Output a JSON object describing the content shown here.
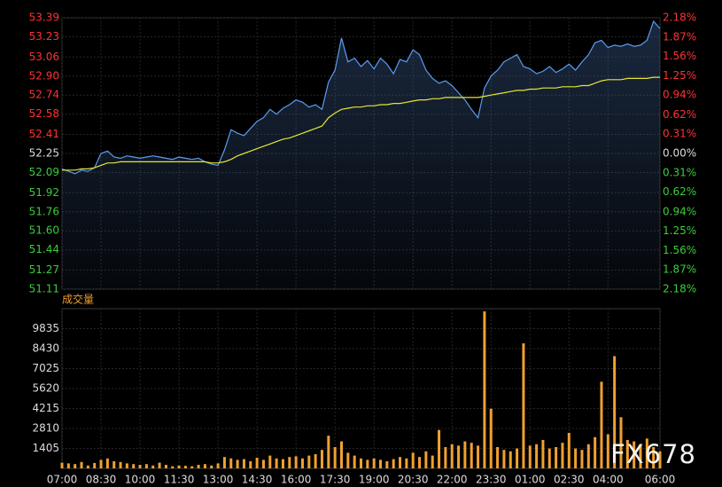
{
  "chart_data": [
    {
      "type": "line",
      "categories": [
        "07:00",
        "07:15",
        "07:30",
        "07:45",
        "08:00",
        "08:15",
        "08:30",
        "08:45",
        "09:00",
        "09:15",
        "09:30",
        "09:45",
        "10:00",
        "10:15",
        "10:30",
        "10:45",
        "11:00",
        "11:15",
        "11:30",
        "11:45",
        "12:00",
        "12:15",
        "12:30",
        "12:45",
        "13:00",
        "13:15",
        "13:30",
        "13:45",
        "14:00",
        "14:15",
        "14:30",
        "14:45",
        "15:00",
        "15:15",
        "15:30",
        "15:45",
        "16:00",
        "16:15",
        "16:30",
        "16:45",
        "17:00",
        "17:15",
        "17:30",
        "17:45",
        "18:00",
        "18:15",
        "18:30",
        "18:45",
        "19:00",
        "19:15",
        "19:30",
        "19:45",
        "20:00",
        "20:15",
        "20:30",
        "20:45",
        "21:00",
        "21:15",
        "21:30",
        "21:45",
        "22:00",
        "22:15",
        "22:30",
        "22:45",
        "23:00",
        "23:15",
        "23:30",
        "23:45",
        "00:00",
        "00:15",
        "00:30",
        "00:45",
        "01:00",
        "01:15",
        "01:30",
        "01:45",
        "02:00",
        "02:15",
        "02:30",
        "02:45",
        "03:00",
        "03:15",
        "03:30",
        "03:45",
        "04:00",
        "04:15",
        "04:30",
        "04:45",
        "05:00",
        "05:15",
        "05:30",
        "05:45",
        "06:00"
      ],
      "xticks": [
        "07:00",
        "08:30",
        "10:00",
        "11:30",
        "13:00",
        "14:30",
        "16:00",
        "17:30",
        "19:00",
        "20:30",
        "22:00",
        "23:30",
        "01:00",
        "02:30",
        "04:00",
        "06:00"
      ],
      "series": [
        {
          "color": "#5b9bf0",
          "values": [
            52.12,
            52.1,
            52.08,
            52.11,
            52.1,
            52.13,
            52.25,
            52.27,
            52.22,
            52.21,
            52.23,
            52.22,
            52.21,
            52.22,
            52.23,
            52.22,
            52.21,
            52.2,
            52.22,
            52.21,
            52.2,
            52.21,
            52.18,
            52.16,
            52.15,
            52.28,
            52.45,
            52.42,
            52.4,
            52.46,
            52.52,
            52.55,
            52.62,
            52.58,
            52.63,
            52.66,
            52.7,
            52.68,
            52.64,
            52.66,
            52.62,
            52.85,
            52.95,
            53.22,
            53.02,
            53.05,
            52.98,
            53.03,
            52.96,
            53.05,
            53.0,
            52.92,
            53.04,
            53.02,
            53.12,
            53.08,
            52.95,
            52.88,
            52.84,
            52.86,
            52.82,
            52.76,
            52.7,
            52.62,
            52.55,
            52.8,
            52.9,
            52.95,
            53.02,
            53.05,
            53.08,
            52.98,
            52.96,
            52.92,
            52.94,
            52.98,
            52.93,
            52.96,
            53.0,
            52.95,
            53.02,
            53.08,
            53.18,
            53.2,
            53.14,
            53.16,
            53.15,
            53.17,
            53.15,
            53.16,
            53.2,
            53.36,
            53.3
          ]
        },
        {
          "color": "#e6e632",
          "values": [
            52.11,
            52.11,
            52.11,
            52.12,
            52.12,
            52.13,
            52.15,
            52.17,
            52.17,
            52.18,
            52.18,
            52.18,
            52.18,
            52.18,
            52.18,
            52.18,
            52.18,
            52.18,
            52.18,
            52.18,
            52.18,
            52.18,
            52.18,
            52.17,
            52.17,
            52.18,
            52.2,
            52.23,
            52.25,
            52.27,
            52.29,
            52.31,
            52.33,
            52.35,
            52.37,
            52.38,
            52.4,
            52.42,
            52.44,
            52.46,
            52.48,
            52.55,
            52.59,
            52.62,
            52.63,
            52.64,
            52.64,
            52.65,
            52.65,
            52.66,
            52.66,
            52.67,
            52.67,
            52.68,
            52.69,
            52.7,
            52.7,
            52.71,
            52.71,
            52.72,
            52.72,
            52.72,
            52.72,
            52.72,
            52.72,
            52.73,
            52.74,
            52.75,
            52.76,
            52.77,
            52.78,
            52.78,
            52.79,
            52.79,
            52.8,
            52.8,
            52.8,
            52.81,
            52.81,
            52.81,
            52.82,
            52.82,
            52.84,
            52.86,
            52.87,
            52.87,
            52.87,
            52.88,
            52.88,
            52.88,
            52.88,
            52.89,
            52.89
          ]
        }
      ],
      "ylim": [
        51.11,
        53.39
      ],
      "yticks": [
        53.39,
        53.23,
        53.06,
        {
          "value": 52.9,
          "label": "52.90"
        },
        52.74,
        52.58,
        52.41,
        52.25,
        52.09,
        51.92,
        51.76,
        {
          "value": 51.6,
          "label": "51.60"
        },
        51.44,
        51.27,
        51.11
      ],
      "y2lim": [
        -2.18,
        2.18
      ],
      "y2ticks": [
        {
          "value": 2.18,
          "label": "2.18%"
        },
        {
          "value": 1.87,
          "label": "1.87%"
        },
        {
          "value": 1.56,
          "label": "1.56%"
        },
        {
          "value": 1.25,
          "label": "1.25%"
        },
        {
          "value": 0.94,
          "label": "0.94%"
        },
        {
          "value": 0.62,
          "label": "0.62%"
        },
        {
          "value": 0.31,
          "label": "0.31%"
        },
        {
          "value": 0,
          "label": "0.00%"
        },
        {
          "value": -0.31,
          "label": "0.31%"
        },
        {
          "value": -0.62,
          "label": "0.62%"
        },
        {
          "value": -0.94,
          "label": "0.94%"
        },
        {
          "value": -1.25,
          "label": "1.25%"
        },
        {
          "value": -1.56,
          "label": "1.56%"
        },
        {
          "value": -1.87,
          "label": "1.87%"
        },
        {
          "value": -2.18,
          "label": "2.18%"
        }
      ],
      "up_color": "#ff3232",
      "down_color": "#3ccc3c",
      "flat_color": "#dddddd",
      "grid": true
    },
    {
      "type": "bar",
      "title": "成交量",
      "categories": [
        "07:00",
        "07:15",
        "07:30",
        "07:45",
        "08:00",
        "08:15",
        "08:30",
        "08:45",
        "09:00",
        "09:15",
        "09:30",
        "09:45",
        "10:00",
        "10:15",
        "10:30",
        "10:45",
        "11:00",
        "11:15",
        "11:30",
        "11:45",
        "12:00",
        "12:15",
        "12:30",
        "12:45",
        "13:00",
        "13:15",
        "13:30",
        "13:45",
        "14:00",
        "14:15",
        "14:30",
        "14:45",
        "15:00",
        "15:15",
        "15:30",
        "15:45",
        "16:00",
        "16:15",
        "16:30",
        "16:45",
        "17:00",
        "17:15",
        "17:30",
        "17:45",
        "18:00",
        "18:15",
        "18:30",
        "18:45",
        "19:00",
        "19:15",
        "19:30",
        "19:45",
        "20:00",
        "20:15",
        "20:30",
        "20:45",
        "21:00",
        "21:15",
        "21:30",
        "21:45",
        "22:00",
        "22:15",
        "22:30",
        "22:45",
        "23:00",
        "23:15",
        "23:30",
        "23:45",
        "00:00",
        "00:15",
        "00:30",
        "00:45",
        "01:00",
        "01:15",
        "01:30",
        "01:45",
        "02:00",
        "02:15",
        "02:30",
        "02:45",
        "03:00",
        "03:15",
        "03:30",
        "03:45",
        "04:00",
        "04:15",
        "04:30",
        "04:45",
        "05:00",
        "05:15",
        "05:30",
        "05:45",
        "06:00"
      ],
      "xticks": [
        "07:00",
        "08:30",
        "10:00",
        "11:30",
        "13:00",
        "14:30",
        "16:00",
        "17:30",
        "19:00",
        "20:30",
        "22:00",
        "23:30",
        "01:00",
        "02:30",
        "04:00",
        "06:00"
      ],
      "values": [
        400,
        350,
        300,
        450,
        200,
        380,
        600,
        700,
        500,
        450,
        350,
        300,
        250,
        300,
        200,
        400,
        250,
        150,
        200,
        180,
        150,
        250,
        300,
        200,
        350,
        800,
        700,
        600,
        650,
        500,
        750,
        600,
        900,
        700,
        650,
        800,
        850,
        700,
        900,
        1000,
        1300,
        2300,
        1500,
        1900,
        1100,
        900,
        700,
        600,
        700,
        600,
        500,
        650,
        800,
        700,
        1100,
        800,
        1200,
        900,
        2700,
        1500,
        1700,
        1600,
        1900,
        1800,
        1600,
        11050,
        4200,
        1500,
        1300,
        1200,
        1400,
        8800,
        1600,
        1700,
        2000,
        1400,
        1500,
        1800,
        2500,
        1400,
        1300,
        1700,
        2200,
        6100,
        2400,
        7900,
        3600,
        2000,
        1900,
        1700,
        2100,
        1500,
        1200
      ],
      "color": "#f0a030",
      "ylim": [
        0,
        11240
      ],
      "yticks": [
        1405,
        2810,
        4215,
        5620,
        7025,
        8430,
        9835
      ],
      "grid": true
    }
  ],
  "watermark": "FX678"
}
